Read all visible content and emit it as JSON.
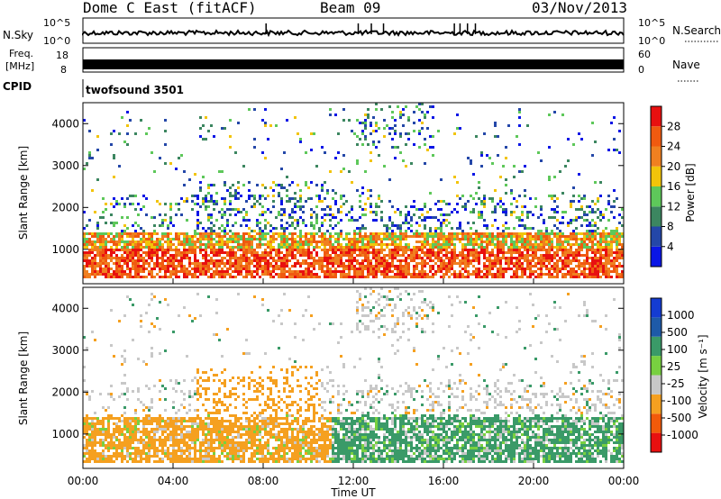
{
  "header": {
    "station": "Dome C East (fitACF)",
    "beam": "Beam 09",
    "date": "03/Nov/2013"
  },
  "sky_panel": {
    "label": "N.Sky",
    "ticks": [
      "10^5",
      "10^0"
    ],
    "right_ticks": [
      "10^5",
      "10^0"
    ],
    "right_label": "N.Search"
  },
  "freq_panel": {
    "label_line1": "Freq.",
    "label_line2": "[MHz]",
    "ticks": [
      "18",
      "8"
    ],
    "right_ticks": [
      "60",
      "0"
    ],
    "right_label": "Nave"
  },
  "cpid": {
    "label": "CPID",
    "value": "twofsound 3501"
  },
  "colors": {
    "power": [
      "#0a16e6",
      "#2447a8",
      "#3c8660",
      "#5ec85a",
      "#f2c40a",
      "#f08020",
      "#f05a10",
      "#e81010"
    ],
    "velocity": [
      "#e81010",
      "#f25a0a",
      "#f5a020",
      "#c8c8c8",
      "#78d040",
      "#3a9a68",
      "#1e5aa8",
      "#143cd2"
    ]
  },
  "chart_data": [
    {
      "type": "heatmap",
      "name_on_chart": "",
      "ylabel": "Slant Range [km]",
      "xlabel": "Time UT",
      "x_ticks": [
        "00:00",
        "04:00",
        "08:00",
        "12:00",
        "16:00",
        "20:00",
        "00:00"
      ],
      "xlim_hours": [
        0,
        24
      ],
      "y_ticks": [
        "1000",
        "2000",
        "3000",
        "4000"
      ],
      "ylim_km": [
        180,
        4500
      ],
      "colorbar": {
        "label": "Power [dB]",
        "ticks": [
          "4",
          "8",
          "12",
          "16",
          "20",
          "24",
          "28"
        ],
        "range": [
          0,
          32
        ]
      },
      "main_echo_band_km": [
        300,
        1400
      ],
      "scatter_band_km": [
        1400,
        4400
      ]
    },
    {
      "type": "heatmap",
      "ylabel": "Slant Range [km]",
      "xlabel": "Time UT",
      "x_ticks": [
        "00:00",
        "04:00",
        "08:00",
        "12:00",
        "16:00",
        "20:00",
        "00:00"
      ],
      "xlim_hours": [
        0,
        24
      ],
      "y_ticks": [
        "1000",
        "2000",
        "3000",
        "4000"
      ],
      "ylim_km": [
        180,
        4500
      ],
      "colorbar": {
        "label": "Velocity [m s⁻¹]",
        "ticks": [
          "1000",
          "500",
          "100",
          "25",
          "-25",
          "-100",
          "-500",
          "-1000"
        ]
      },
      "regimes": [
        {
          "hours": [
            0,
            11
          ],
          "dominant": "negative (away)"
        },
        {
          "hours": [
            11,
            24
          ],
          "dominant": "positive (toward)"
        }
      ]
    }
  ]
}
